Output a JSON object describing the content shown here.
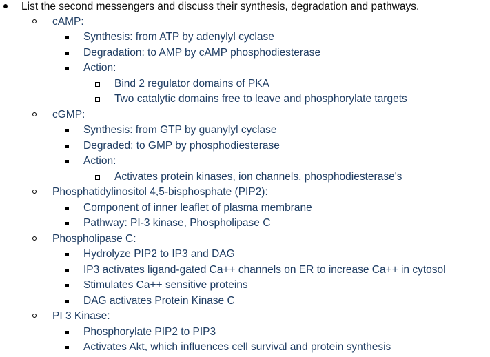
{
  "doc": {
    "heading": "List the second messengers and discuss their synthesis, degradation and pathways.",
    "camp": {
      "label": "cAMP:",
      "synthesis": "Synthesis: from ATP by adenylyl cyclase",
      "degradation": "Degradation: to AMP by cAMP phosphodiesterase",
      "action": "Action:",
      "action_items": [
        "Bind 2 regulator domains of PKA",
        "Two catalytic domains free to leave and phosphorylate targets"
      ]
    },
    "cgmp": {
      "label": "cGMP:",
      "synthesis": "Synthesis: from GTP by guanylyl cyclase",
      "degradation": "Degraded: to GMP by phosphodiesterase",
      "action": "Action:",
      "action_items": [
        "Activates protein kinases, ion channels, phosphodiesterase's"
      ]
    },
    "pip2": {
      "label": "Phosphatidylinositol 4,5-bisphosphate (PIP2):",
      "items": [
        "Component of inner leaflet of plasma membrane",
        "Pathway: PI-3 kinase, Phospholipase C"
      ]
    },
    "plc": {
      "label": "Phospholipase C:",
      "items": [
        "Hydrolyze PIP2 to IP3 and DAG",
        "IP3 activates ligand-gated Ca++ channels on ER to increase Ca++ in cytosol",
        "Stimulates Ca++ sensitive proteins",
        "DAG activates Protein Kinase C"
      ]
    },
    "pi3k": {
      "label": "PI 3 Kinase:",
      "items": [
        "Phosphorylate PIP2 to PIP3",
        "Activates Akt, which influences cell survival and protein synthesis"
      ]
    }
  }
}
